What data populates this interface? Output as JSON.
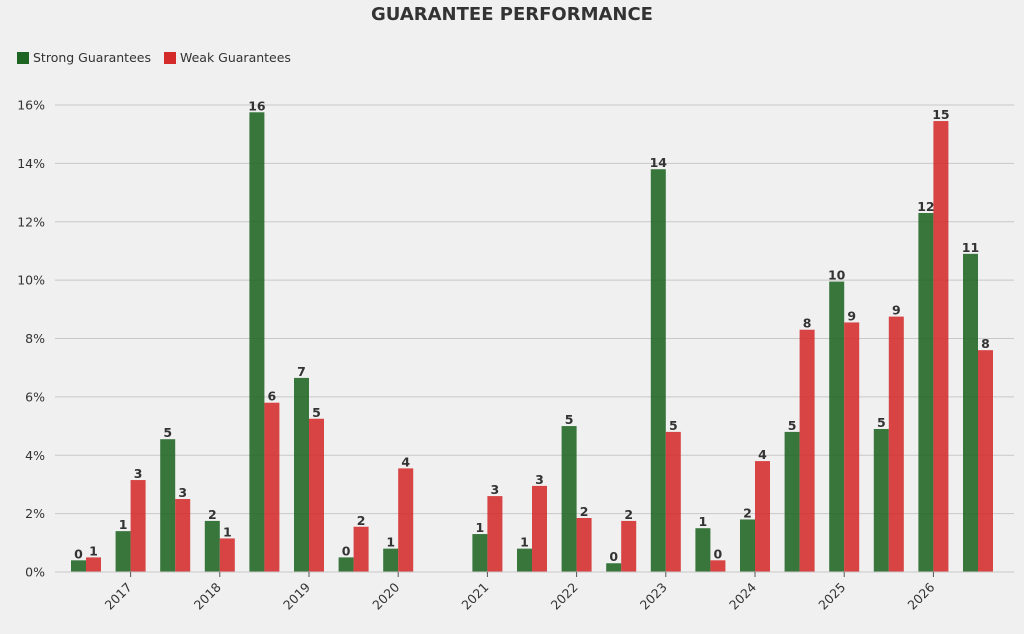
{
  "chart_data": {
    "type": "bar",
    "title": "GUARANTEE PERFORMANCE",
    "xlabel": "",
    "ylabel": "",
    "ylim": [
      0,
      16
    ],
    "y_ticks": [
      "0%",
      "2%",
      "4%",
      "6%",
      "8%",
      "10%",
      "12%",
      "14%",
      "16%"
    ],
    "x_tick_labels": [
      "2017",
      "2018",
      "2019",
      "2020",
      "2021",
      "2022",
      "2023",
      "2024",
      "2025",
      "2026"
    ],
    "grid": true,
    "legend_position": "top-left",
    "groups": [
      0,
      1,
      2,
      3,
      4,
      5,
      6,
      7,
      8,
      9,
      10,
      11,
      12,
      13,
      14,
      15,
      16,
      17,
      18,
      19,
      20
    ],
    "series": [
      {
        "name": "Strong Guarantees",
        "color": "#1e6422",
        "values": [
          0.4,
          1.4,
          4.55,
          1.75,
          15.75,
          6.65,
          0.5,
          0.8,
          null,
          1.3,
          0.8,
          5.0,
          0.3,
          13.8,
          1.5,
          1.8,
          4.8,
          9.95,
          4.9,
          12.3,
          10.9
        ],
        "labels": [
          "0",
          "1",
          "5",
          "2",
          "16",
          "7",
          "0",
          "1",
          null,
          "1",
          "1",
          "5",
          "0",
          "14",
          "1",
          "2",
          "5",
          "10",
          "5",
          "12",
          "11"
        ]
      },
      {
        "name": "Weak Guarantees",
        "color": "#d42a2a",
        "values": [
          0.5,
          3.15,
          2.5,
          1.15,
          5.8,
          5.25,
          1.55,
          3.55,
          null,
          2.6,
          2.95,
          1.85,
          1.75,
          4.8,
          0.4,
          3.8,
          8.3,
          8.55,
          8.75,
          15.45,
          7.6
        ],
        "labels": [
          "1",
          "3",
          "3",
          "1",
          "6",
          "5",
          "2",
          "4",
          null,
          "3",
          "3",
          "2",
          "2",
          "5",
          "0",
          "4",
          "8",
          "9",
          "9",
          "15",
          "8"
        ]
      }
    ]
  }
}
